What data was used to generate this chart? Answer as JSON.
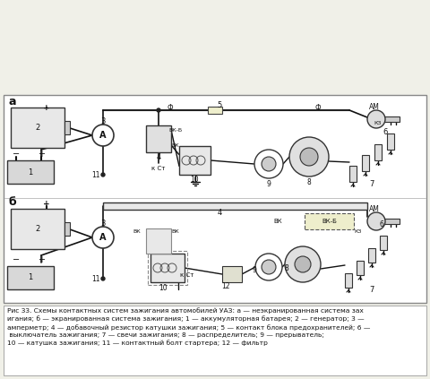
{
  "title": "",
  "bg_color": "#f0f0e8",
  "diagram_bg": "#ffffff",
  "caption_lines": [
    "Рис 33. Схемы контактных систем зажигания автомобилей УАЗ: а — неэкранированная система зах",
    "игания; б — экранированная система зажигания; 1 — аккумуляторная батарея; 2 — генератор; 3 —",
    "амперметр; 4 — добавочный резистор катушки зажигания; 5 — контакт блока предохранителей; 6 —",
    " выключатель зажигания; 7 — свечи зажигания; 8 — распределитель; 9 — прерыватель;",
    "10 — катушка зажигания; 11 — контактный болт стартера; 12 — фильтр"
  ],
  "label_a": "а",
  "label_b": "б",
  "line_color": "#222222",
  "component_color": "#333333",
  "wire_color": "#111111",
  "fuse_color": "#ccccaa",
  "dashed_color": "#555555"
}
